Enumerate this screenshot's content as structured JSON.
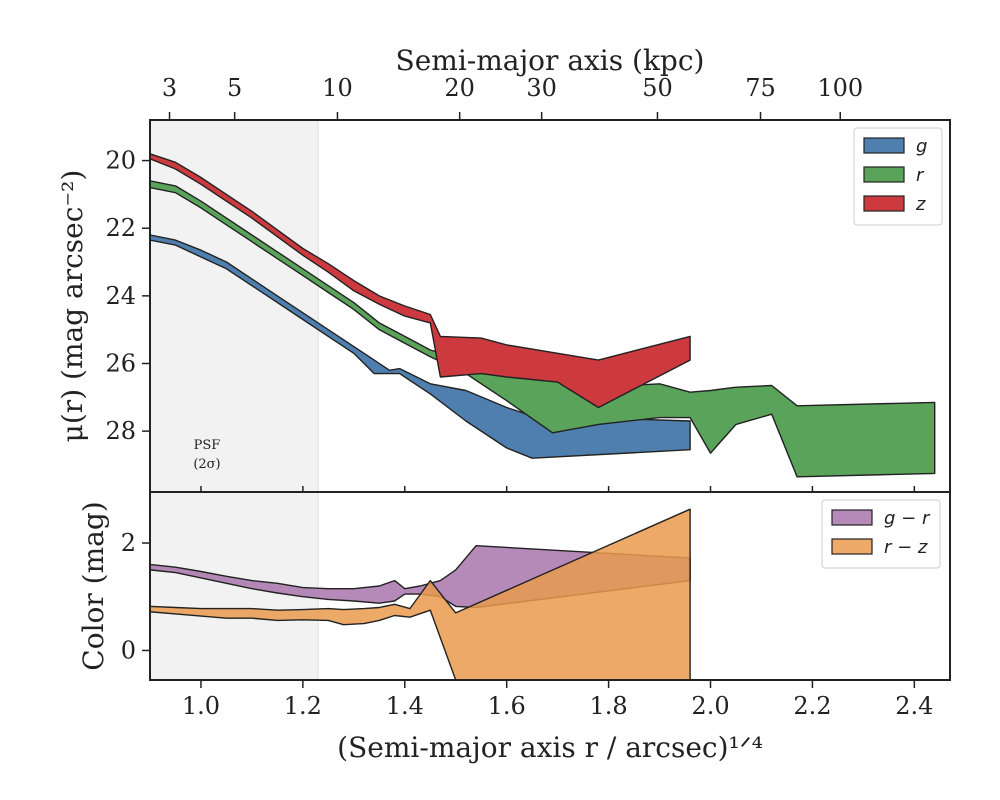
{
  "chart_data": [
    {
      "type": "area",
      "panel": "surface-brightness",
      "xlabel_top": "Semi-major axis (kpc)",
      "top_ticks_kpc": [
        3,
        5,
        10,
        20,
        30,
        50,
        75,
        100
      ],
      "ylabel": "μ(r) (mag arcsec⁻²)",
      "xlim": [
        0.9,
        2.47
      ],
      "ylim": [
        29.8,
        18.8
      ],
      "y_inverted": true,
      "yticks": [
        20,
        22,
        24,
        26,
        28
      ],
      "psf_region": {
        "x_max": 1.23,
        "label_line1": "PSF",
        "label_line2": "(2σ)"
      },
      "legend_position": "top-right",
      "series": [
        {
          "name": "g",
          "color": "#4f7fae",
          "x": [
            0.9,
            0.95,
            1.0,
            1.05,
            1.1,
            1.15,
            1.2,
            1.25,
            1.3,
            1.34,
            1.37,
            1.39,
            1.41,
            1.45,
            1.52,
            1.6,
            1.65,
            1.96
          ],
          "lo": [
            22.2,
            22.35,
            22.65,
            23.0,
            23.5,
            24.0,
            24.5,
            25.0,
            25.5,
            25.9,
            26.2,
            26.15,
            26.3,
            26.6,
            26.8,
            27.3,
            27.55,
            27.7
          ],
          "hi": [
            22.35,
            22.5,
            22.85,
            23.2,
            23.7,
            24.2,
            24.7,
            25.2,
            25.7,
            26.3,
            26.3,
            26.3,
            26.5,
            26.9,
            27.7,
            28.5,
            28.8,
            28.55
          ]
        },
        {
          "name": "r",
          "color": "#5aa35a",
          "x": [
            0.9,
            0.95,
            1.0,
            1.05,
            1.1,
            1.15,
            1.2,
            1.25,
            1.3,
            1.35,
            1.4,
            1.45,
            1.52,
            1.6,
            1.69,
            1.78,
            1.9,
            1.96,
            2.0,
            2.05,
            2.12,
            2.17,
            2.44
          ],
          "lo": [
            20.6,
            20.75,
            21.2,
            21.7,
            22.2,
            22.7,
            23.2,
            23.7,
            24.2,
            24.8,
            25.2,
            25.6,
            25.9,
            26.1,
            26.5,
            26.7,
            26.6,
            26.85,
            26.8,
            26.7,
            26.65,
            27.25,
            27.15
          ],
          "hi": [
            20.8,
            20.95,
            21.4,
            21.9,
            22.4,
            22.9,
            23.4,
            23.9,
            24.4,
            25.0,
            25.4,
            25.8,
            26.3,
            27.1,
            28.05,
            27.8,
            27.6,
            27.6,
            28.65,
            27.8,
            27.5,
            29.35,
            29.25
          ]
        },
        {
          "name": "z",
          "color": "#cc3a3f",
          "x": [
            0.9,
            0.95,
            1.0,
            1.05,
            1.1,
            1.15,
            1.2,
            1.25,
            1.3,
            1.35,
            1.4,
            1.45,
            1.47,
            1.55,
            1.6,
            1.7,
            1.78,
            1.96
          ],
          "lo": [
            19.8,
            20.05,
            20.5,
            21.0,
            21.5,
            22.05,
            22.6,
            23.05,
            23.55,
            24.0,
            24.3,
            24.55,
            25.2,
            25.25,
            25.45,
            25.7,
            25.9,
            25.2
          ],
          "hi": [
            19.95,
            20.25,
            20.7,
            21.2,
            21.7,
            22.25,
            22.8,
            23.3,
            23.85,
            24.25,
            24.6,
            24.8,
            26.4,
            26.3,
            26.4,
            26.55,
            27.3,
            25.9
          ]
        }
      ]
    },
    {
      "type": "area",
      "panel": "color",
      "xlabel": "(Semi-major axis r / arcsec)¹ᐟ⁴",
      "ylabel": "Color (mag)",
      "xlim": [
        0.9,
        2.47
      ],
      "ylim": [
        -0.55,
        2.95
      ],
      "yticks": [
        0,
        2
      ],
      "xticks": [
        1.0,
        1.2,
        1.4,
        1.6,
        1.8,
        2.0,
        2.2,
        2.4
      ],
      "xtick_labels": [
        "1.0",
        "1.2",
        "1.4",
        "1.6",
        "1.8",
        "2.0",
        "2.2",
        "2.4"
      ],
      "legend_position": "top-right",
      "series": [
        {
          "name": "g − r",
          "color": "#a876ad",
          "x": [
            0.9,
            0.95,
            1.0,
            1.05,
            1.1,
            1.15,
            1.2,
            1.25,
            1.3,
            1.35,
            1.38,
            1.4,
            1.43,
            1.47,
            1.5,
            1.54,
            1.96
          ],
          "lo": [
            1.5,
            1.45,
            1.35,
            1.25,
            1.15,
            1.07,
            1.0,
            0.95,
            0.92,
            0.88,
            0.92,
            1.05,
            1.05,
            1.0,
            0.82,
            0.8,
            1.3
          ],
          "hi": [
            1.6,
            1.55,
            1.47,
            1.38,
            1.3,
            1.25,
            1.17,
            1.15,
            1.15,
            1.2,
            1.3,
            1.15,
            1.2,
            1.3,
            1.5,
            1.95,
            1.72
          ]
        },
        {
          "name": "r − z",
          "color": "#e99a4d",
          "x": [
            0.9,
            0.95,
            1.0,
            1.05,
            1.1,
            1.15,
            1.2,
            1.25,
            1.28,
            1.32,
            1.35,
            1.38,
            1.41,
            1.45,
            1.5,
            1.96
          ],
          "lo": [
            0.72,
            0.68,
            0.64,
            0.6,
            0.6,
            0.56,
            0.57,
            0.56,
            0.48,
            0.5,
            0.56,
            0.65,
            0.62,
            0.75,
            -0.55,
            -0.55
          ],
          "hi": [
            0.82,
            0.8,
            0.78,
            0.78,
            0.78,
            0.75,
            0.76,
            0.78,
            0.76,
            0.78,
            0.8,
            0.86,
            0.78,
            1.3,
            0.7,
            2.63
          ]
        }
      ]
    }
  ]
}
